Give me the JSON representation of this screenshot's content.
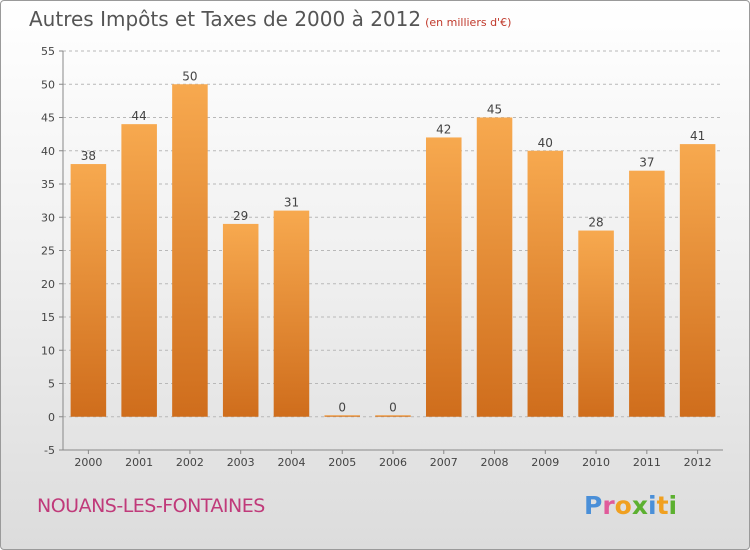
{
  "title": "Autres Impôts et Taxes de 2000 à 2012",
  "title_units": "(en milliers d'€)",
  "commune": "NOUANS-LES-FONTAINES",
  "logo": {
    "text": "Proxiti",
    "letters": [
      {
        "ch": "P",
        "color": "#4a8fd8"
      },
      {
        "ch": "r",
        "color": "#e05a9a"
      },
      {
        "ch": "o",
        "color": "#f0a020"
      },
      {
        "ch": "x",
        "color": "#5cb030"
      },
      {
        "ch": "i",
        "color": "#4a8fd8"
      },
      {
        "ch": "t",
        "color": "#f0a020"
      },
      {
        "ch": "i",
        "color": "#5cb030"
      }
    ]
  },
  "colors": {
    "bar_top": "#f7a94f",
    "bar_bottom": "#cf6d1c",
    "grid": "#b8b8b8",
    "axis": "#888888",
    "text": "#444444"
  },
  "chart_data": {
    "type": "bar",
    "categories": [
      "2000",
      "2001",
      "2002",
      "2003",
      "2004",
      "2005",
      "2006",
      "2007",
      "2008",
      "2009",
      "2010",
      "2011",
      "2012"
    ],
    "values": [
      38,
      44,
      50,
      29,
      31,
      0,
      0,
      42,
      45,
      40,
      28,
      37,
      41
    ],
    "data_labels": [
      "38",
      "44",
      "50",
      "29",
      "31",
      "0",
      "0",
      "42",
      "45",
      "40",
      "28",
      "37",
      "41"
    ],
    "y_ticks": [
      "-5",
      "0",
      "5",
      "10",
      "15",
      "20",
      "25",
      "30",
      "35",
      "40",
      "45",
      "50",
      "55"
    ],
    "ylim": [
      -5,
      55
    ],
    "grid": true
  }
}
